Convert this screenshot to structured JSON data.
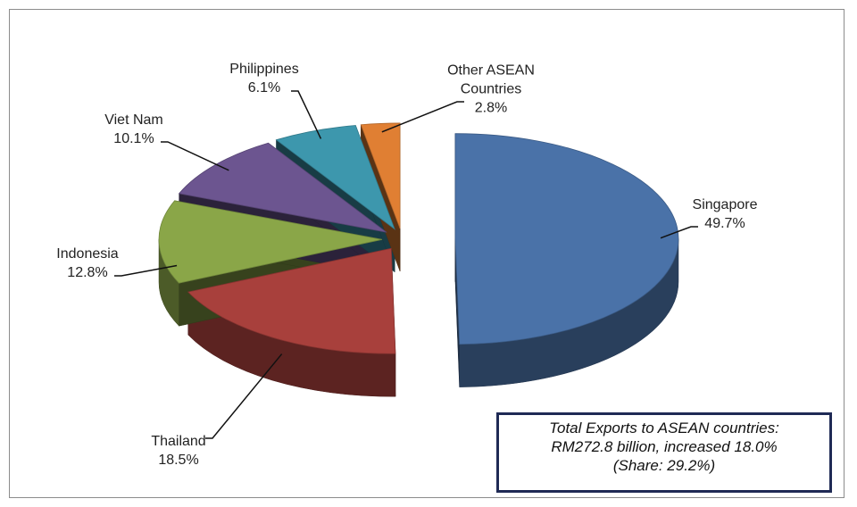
{
  "chart_data": {
    "type": "pie",
    "categories": [
      "Singapore",
      "Thailand",
      "Indonesia",
      "Viet Nam",
      "Philippines",
      "Other ASEAN Countries"
    ],
    "values": [
      49.7,
      18.5,
      12.8,
      10.1,
      6.1,
      2.8
    ],
    "value_labels": [
      "49.7%",
      "18.5%",
      "12.8%",
      "10.1%",
      "6.1%",
      "2.8%"
    ],
    "colors": [
      "#4a72a8",
      "#a8403c",
      "#8aa648",
      "#6c5590",
      "#3d97ad",
      "#e07f33"
    ],
    "annotation": [
      "Total Exports to ASEAN countries:",
      "RM272.8 billion, increased 18.0%",
      "(Share: 29.2%)"
    ]
  }
}
